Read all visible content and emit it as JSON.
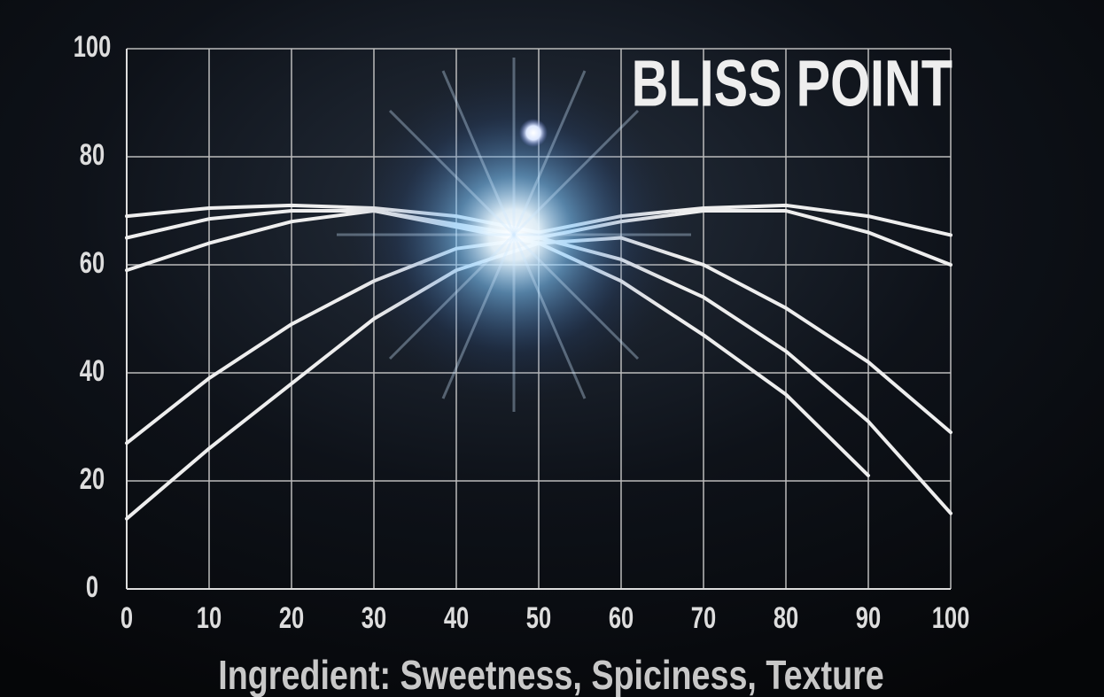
{
  "chart_data": {
    "type": "line",
    "title": "BLISS POINT",
    "x_label": "Ingredient: Sweetness, Spiciness, Texture",
    "x": [
      0,
      10,
      20,
      30,
      40,
      50,
      60,
      70,
      80,
      90,
      100
    ],
    "series": [
      {
        "color": "#eeeeee",
        "values": [
          69,
          70.5,
          71,
          70.5,
          69,
          66,
          69,
          70.5,
          71,
          69,
          65.5
        ]
      },
      {
        "color": "#eeeeee",
        "values": [
          65,
          68.5,
          70,
          70,
          67.5,
          65,
          68,
          70,
          70,
          66,
          60
        ]
      },
      {
        "color": "#eeeeee",
        "values": [
          59,
          64,
          68,
          70,
          67,
          64,
          65,
          60,
          52,
          42,
          29
        ]
      },
      {
        "color": "#eeeeee",
        "values": [
          27,
          39,
          49,
          57,
          63,
          65,
          61,
          54,
          44,
          31,
          14
        ]
      },
      {
        "color": "#eeeeee",
        "values": [
          13,
          26,
          38,
          50,
          59,
          64,
          57,
          47,
          36,
          21,
          null
        ]
      }
    ],
    "xlim": [
      0,
      100
    ],
    "xticks": [
      0,
      10,
      20,
      30,
      40,
      50,
      60,
      70,
      80,
      90,
      100
    ],
    "ylim": [
      0,
      100
    ],
    "yticks": [
      0,
      20,
      40,
      60,
      80,
      100
    ],
    "grid": true
  }
}
